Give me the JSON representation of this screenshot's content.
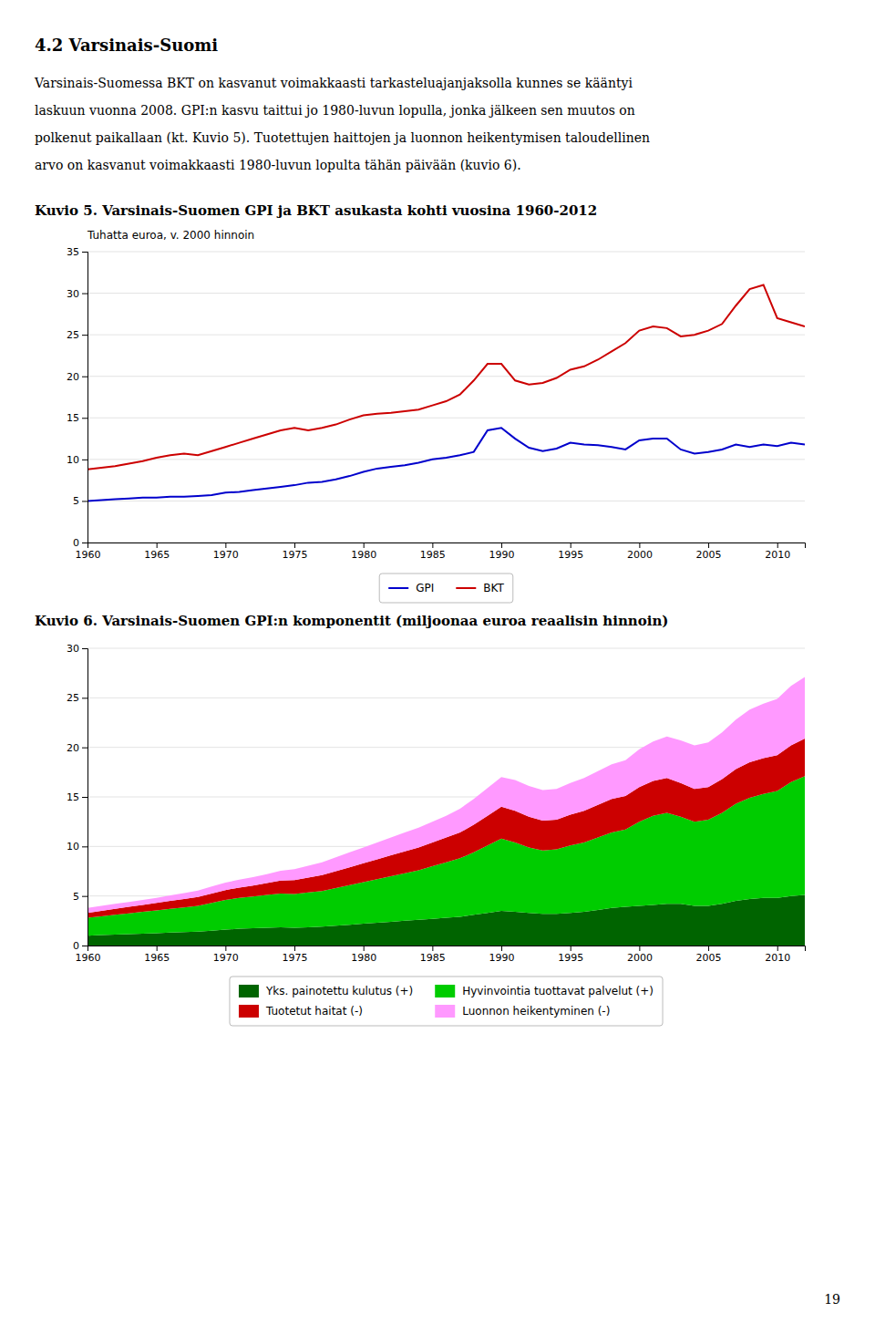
{
  "heading": "4.2 Varsinais-Suomi",
  "paragraph": [
    "Varsinais-Suomessa BKT on kasvanut voimakkaasti tarkasteluajanjaksolla kunnes se kääntyi",
    "laskuun vuonna 2008. GPI:n kasvu taittui jo 1980-luvun lopulla, jonka jälkeen sen muutos on",
    "polkenut paikallaan (kt. Kuvio 5). Tuotettujen haittojen ja luonnon heikentymisen taloudellinen",
    "arvo on kasvanut voimakkaasti 1980-luvun lopulta tähän päivään (kuvio 6)."
  ],
  "page_number": "19",
  "chart_data": [
    {
      "type": "line",
      "title": "Kuvio 5. Varsinais-Suomen GPI ja BKT asukasta kohti vuosina 1960-2012",
      "ylabel": "Tuhatta euroa, v. 2000 hinnoin",
      "x": [
        1960,
        1961,
        1962,
        1963,
        1964,
        1965,
        1966,
        1967,
        1968,
        1969,
        1970,
        1971,
        1972,
        1973,
        1974,
        1975,
        1976,
        1977,
        1978,
        1979,
        1980,
        1981,
        1982,
        1983,
        1984,
        1985,
        1986,
        1987,
        1988,
        1989,
        1990,
        1991,
        1992,
        1993,
        1994,
        1995,
        1996,
        1997,
        1998,
        1999,
        2000,
        2001,
        2002,
        2003,
        2004,
        2005,
        2006,
        2007,
        2008,
        2009,
        2010,
        2011,
        2012
      ],
      "series": [
        {
          "name": "GPI",
          "color": "#0000CC",
          "values": [
            5.0,
            5.1,
            5.2,
            5.3,
            5.4,
            5.4,
            5.5,
            5.5,
            5.6,
            5.7,
            6.0,
            6.1,
            6.3,
            6.5,
            6.7,
            6.9,
            7.2,
            7.3,
            7.6,
            8.0,
            8.5,
            8.9,
            9.1,
            9.3,
            9.6,
            10.0,
            10.2,
            10.5,
            10.9,
            13.5,
            13.8,
            12.5,
            11.4,
            11.0,
            11.3,
            12.0,
            11.8,
            11.7,
            11.5,
            11.2,
            12.3,
            12.5,
            12.5,
            11.2,
            10.7,
            10.9,
            11.2,
            11.8,
            11.5,
            11.8,
            11.6,
            12.0,
            11.8
          ]
        },
        {
          "name": "BKT",
          "color": "#CC0000",
          "values": [
            8.8,
            9.0,
            9.2,
            9.5,
            9.8,
            10.2,
            10.5,
            10.7,
            10.5,
            11.0,
            11.5,
            12.0,
            12.5,
            13.0,
            13.5,
            13.8,
            13.5,
            13.8,
            14.2,
            14.8,
            15.3,
            15.5,
            15.6,
            15.8,
            16.0,
            16.5,
            17.0,
            17.8,
            19.5,
            21.5,
            21.5,
            19.5,
            19.0,
            19.2,
            19.8,
            20.8,
            21.2,
            22.0,
            23.0,
            24.0,
            25.5,
            26.0,
            25.8,
            24.8,
            25.0,
            25.5,
            26.3,
            28.5,
            30.5,
            31.0,
            27.0,
            26.5,
            26.0
          ]
        }
      ],
      "xlim": [
        1960,
        2012
      ],
      "xticks": [
        1960,
        1965,
        1970,
        1975,
        1980,
        1985,
        1990,
        1995,
        2000,
        2005,
        2010
      ],
      "ylim": [
        0,
        35
      ],
      "yticks": [
        0,
        5,
        10,
        15,
        20,
        25,
        30,
        35
      ],
      "grid": true,
      "legend": "bottom"
    },
    {
      "type": "area",
      "stacked": true,
      "title": "Kuvio 6. Varsinais-Suomen GPI:n komponentit (miljoonaa euroa reaalisin hinnoin)",
      "x": [
        1960,
        1961,
        1962,
        1963,
        1964,
        1965,
        1966,
        1967,
        1968,
        1969,
        1970,
        1971,
        1972,
        1973,
        1974,
        1975,
        1976,
        1977,
        1978,
        1979,
        1980,
        1981,
        1982,
        1983,
        1984,
        1985,
        1986,
        1987,
        1988,
        1989,
        1990,
        1991,
        1992,
        1993,
        1994,
        1995,
        1996,
        1997,
        1998,
        1999,
        2000,
        2001,
        2002,
        2003,
        2004,
        2005,
        2006,
        2007,
        2008,
        2009,
        2010,
        2011,
        2012
      ],
      "series": [
        {
          "name": "Yks. painotettu kulutus (+)",
          "color": "#006400",
          "values": [
            1.0,
            1.05,
            1.1,
            1.15,
            1.2,
            1.25,
            1.3,
            1.35,
            1.4,
            1.5,
            1.6,
            1.7,
            1.75,
            1.8,
            1.85,
            1.8,
            1.85,
            1.9,
            2.0,
            2.1,
            2.2,
            2.3,
            2.4,
            2.5,
            2.6,
            2.7,
            2.8,
            2.9,
            3.1,
            3.3,
            3.5,
            3.4,
            3.3,
            3.2,
            3.2,
            3.3,
            3.4,
            3.6,
            3.8,
            3.9,
            4.0,
            4.1,
            4.2,
            4.2,
            4.0,
            4.0,
            4.2,
            4.5,
            4.7,
            4.8,
            4.8,
            5.0,
            5.1
          ]
        },
        {
          "name": "Hyvinvointia tuottavat palvelut (+)",
          "color": "#00CC00",
          "values": [
            1.8,
            1.9,
            2.0,
            2.1,
            2.2,
            2.3,
            2.4,
            2.5,
            2.6,
            2.8,
            3.0,
            3.1,
            3.2,
            3.3,
            3.4,
            3.4,
            3.5,
            3.6,
            3.8,
            4.0,
            4.2,
            4.4,
            4.6,
            4.8,
            5.0,
            5.3,
            5.6,
            5.9,
            6.3,
            6.8,
            7.3,
            7.0,
            6.6,
            6.4,
            6.5,
            6.8,
            7.0,
            7.3,
            7.6,
            7.8,
            8.5,
            9.0,
            9.2,
            8.8,
            8.5,
            8.7,
            9.2,
            9.8,
            10.2,
            10.5,
            10.8,
            11.5,
            12.0
          ]
        },
        {
          "name": "Tuotetut haitat (-)",
          "color": "#CC0000",
          "values": [
            0.5,
            0.55,
            0.6,
            0.65,
            0.7,
            0.75,
            0.8,
            0.85,
            0.9,
            0.95,
            1.0,
            1.05,
            1.1,
            1.2,
            1.3,
            1.4,
            1.5,
            1.6,
            1.7,
            1.8,
            1.9,
            2.0,
            2.1,
            2.2,
            2.3,
            2.4,
            2.5,
            2.6,
            2.8,
            3.0,
            3.2,
            3.2,
            3.1,
            3.0,
            3.0,
            3.1,
            3.2,
            3.3,
            3.4,
            3.4,
            3.5,
            3.5,
            3.5,
            3.4,
            3.3,
            3.3,
            3.4,
            3.5,
            3.6,
            3.6,
            3.6,
            3.7,
            3.8
          ]
        },
        {
          "name": "Luonnon heikentyminen (-)",
          "color": "#FF99FF",
          "values": [
            0.5,
            0.5,
            0.5,
            0.5,
            0.5,
            0.5,
            0.55,
            0.6,
            0.65,
            0.7,
            0.75,
            0.8,
            0.85,
            0.9,
            1.0,
            1.1,
            1.2,
            1.3,
            1.4,
            1.5,
            1.6,
            1.7,
            1.8,
            1.9,
            2.0,
            2.1,
            2.2,
            2.4,
            2.6,
            2.8,
            3.0,
            3.1,
            3.1,
            3.1,
            3.1,
            3.2,
            3.3,
            3.4,
            3.5,
            3.6,
            3.8,
            4.0,
            4.2,
            4.3,
            4.4,
            4.5,
            4.7,
            5.0,
            5.3,
            5.5,
            5.7,
            6.0,
            6.2
          ]
        }
      ],
      "xlim": [
        1960,
        2012
      ],
      "xticks": [
        1960,
        1965,
        1970,
        1975,
        1980,
        1985,
        1990,
        1995,
        2000,
        2005,
        2010
      ],
      "ylim": [
        0,
        30
      ],
      "yticks": [
        0,
        5,
        10,
        15,
        20,
        25,
        30
      ],
      "grid": true,
      "legend": "bottom"
    }
  ]
}
